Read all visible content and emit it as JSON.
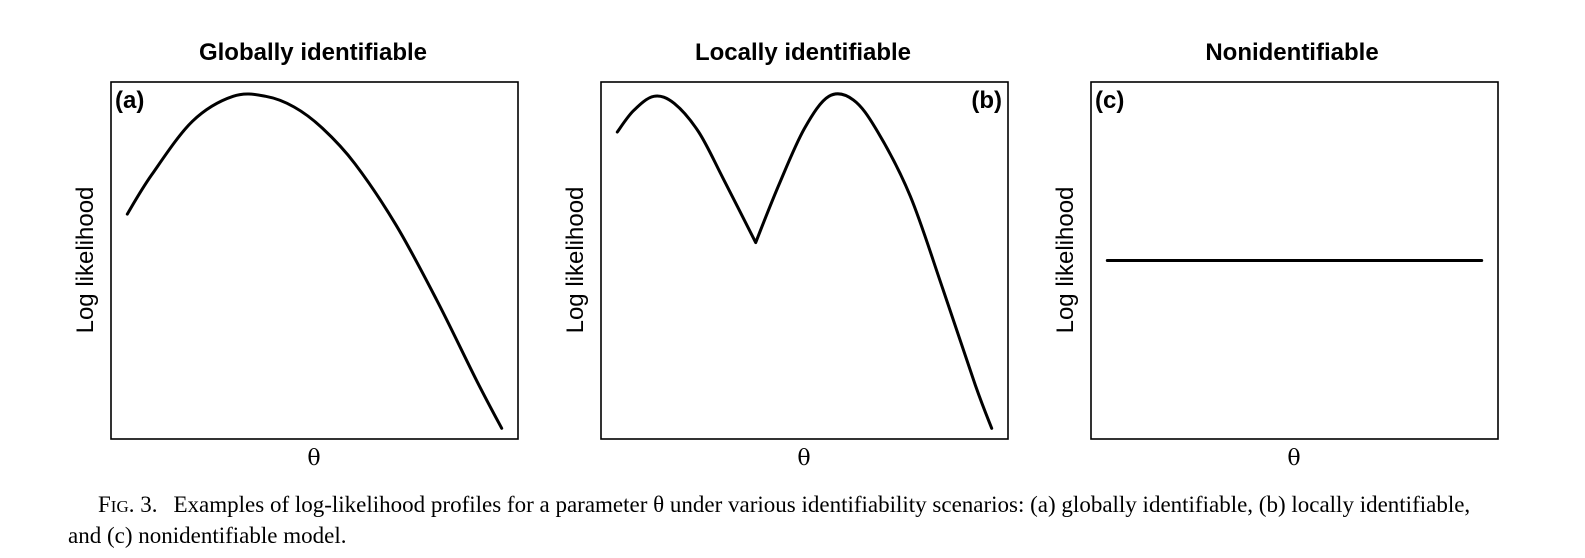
{
  "chart_data": [
    {
      "type": "line",
      "panel_tag": "(a)",
      "title": "Globally identifiable",
      "xlabel": "θ",
      "ylabel": "Log likelihood",
      "xlim": [
        0,
        1
      ],
      "ylim": [
        0,
        1
      ],
      "series": [
        {
          "x": [
            0.04,
            0.1,
            0.2,
            0.3,
            0.38,
            0.45,
            0.52,
            0.6,
            0.7,
            0.8,
            0.9,
            0.96
          ],
          "values": [
            0.63,
            0.74,
            0.89,
            0.96,
            0.96,
            0.93,
            0.87,
            0.77,
            0.6,
            0.39,
            0.16,
            0.03
          ]
        }
      ]
    },
    {
      "type": "line",
      "panel_tag": "(b)",
      "title": "Locally identifiable",
      "xlabel": "θ",
      "ylabel": "Log likelihood",
      "xlim": [
        0,
        1
      ],
      "ylim": [
        0,
        1
      ],
      "series": [
        {
          "x": [
            0.04,
            0.08,
            0.13,
            0.18,
            0.24,
            0.3,
            0.38,
            0.44,
            0.5,
            0.56,
            0.62,
            0.68,
            0.76,
            0.84,
            0.92,
            0.96
          ],
          "values": [
            0.86,
            0.92,
            0.96,
            0.94,
            0.86,
            0.73,
            0.55,
            0.72,
            0.87,
            0.96,
            0.95,
            0.86,
            0.68,
            0.42,
            0.15,
            0.03
          ]
        }
      ]
    },
    {
      "type": "line",
      "panel_tag": "(c)",
      "title": "Nonidentifiable",
      "xlabel": "θ",
      "ylabel": "Log likelihood",
      "xlim": [
        0,
        1
      ],
      "ylim": [
        0,
        1
      ],
      "series": [
        {
          "x": [
            0.04,
            0.96
          ],
          "values": [
            0.5,
            0.5
          ]
        }
      ]
    }
  ],
  "caption": {
    "label_f": "F",
    "label_rest": "IG",
    "label_num": ". 3.",
    "text": "Examples of log-likelihood profiles for a parameter θ under various identifiability scenarios: (a) globally identifiable, (b) locally identifiable, and (c) nonidentifiable model."
  }
}
